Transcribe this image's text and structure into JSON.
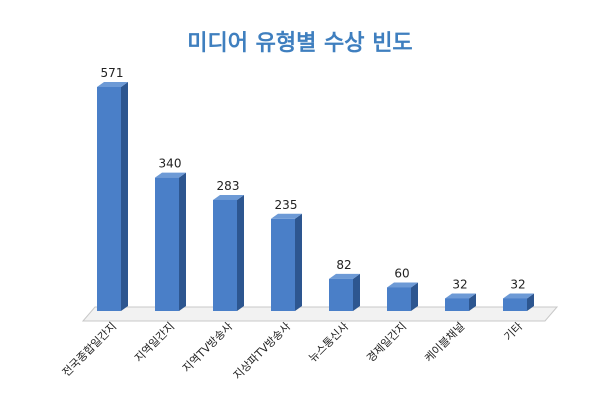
{
  "chart_data": {
    "type": "bar",
    "title": "미디어 유형별 수상 빈도",
    "categories": [
      "전국종합일간지",
      "지역일간지",
      "지역TV방송사",
      "지상파TV방송사",
      "뉴스통신사",
      "경제일간지",
      "케이블채널",
      "기타"
    ],
    "values": [
      571,
      340,
      283,
      235,
      82,
      60,
      32,
      32
    ],
    "xlabel": "",
    "ylabel": "",
    "grid": false,
    "legend": "none",
    "bar_3d": true,
    "colors": {
      "bar_front": "#4a7fc8",
      "bar_side": "#2d5690",
      "bar_top": "#6d9ad6",
      "floor": "#f2f2f2",
      "floor_edge": "#c8c8c8",
      "title": "#3f7fbf"
    }
  }
}
